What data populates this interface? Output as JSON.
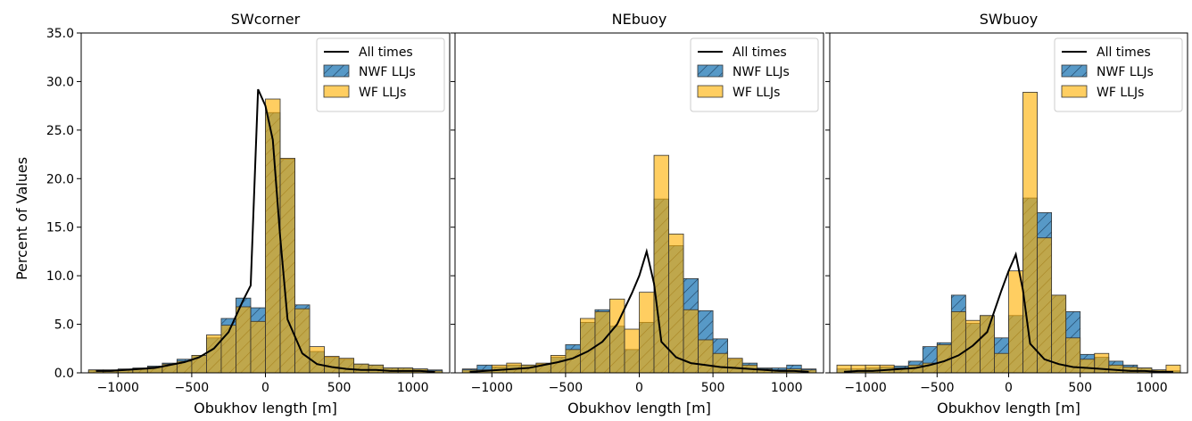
{
  "colors": {
    "nwf": "#1f77b4",
    "wf": "#ffb000",
    "line": "#000000"
  },
  "y_axis_label": "Percent of Values",
  "chart_data": [
    {
      "type": "bar",
      "title": "SWcorner",
      "xlabel": "Obukhov length [m]",
      "ylabel": "Percent of Values",
      "xlim": [
        -1250,
        1250
      ],
      "ylim": [
        0,
        35
      ],
      "xticks": [
        -1000,
        -500,
        0,
        500,
        1000
      ],
      "xtick_labels": [
        "−1000",
        "−500",
        "0",
        "500",
        "1000"
      ],
      "yticks": [
        0,
        5,
        10,
        15,
        20,
        25,
        30,
        35
      ],
      "ytick_labels": [
        "0.0",
        "5.0",
        "10.0",
        "15.0",
        "20.0",
        "25.0",
        "30.0",
        "35.0"
      ],
      "bin_edges": [
        -1200,
        -1100,
        -1000,
        -900,
        -800,
        -700,
        -600,
        -500,
        -400,
        -300,
        -200,
        -100,
        0,
        100,
        200,
        300,
        400,
        500,
        600,
        700,
        800,
        900,
        1000,
        1100,
        1200
      ],
      "legend": {
        "position": "top-right",
        "labels": [
          "All times",
          "NWF LLJs",
          "WF LLJs"
        ]
      },
      "series": [
        {
          "name": "NWF LLJs",
          "kind": "hist",
          "values": [
            0.3,
            0.3,
            0.4,
            0.5,
            0.7,
            1.0,
            1.4,
            1.8,
            3.6,
            5.6,
            7.7,
            6.7,
            26.8,
            22.0,
            7.0,
            2.2,
            1.6,
            1.4,
            0.9,
            0.8,
            0.5,
            0.5,
            0.4,
            0.3
          ]
        },
        {
          "name": "WF LLJs",
          "kind": "hist",
          "values": [
            0.3,
            0.3,
            0.3,
            0.4,
            0.6,
            0.9,
            1.2,
            1.8,
            3.9,
            4.9,
            6.8,
            5.3,
            28.2,
            22.1,
            6.6,
            2.7,
            1.7,
            1.5,
            0.9,
            0.8,
            0.5,
            0.5,
            0.4,
            0.2
          ]
        },
        {
          "name": "All times",
          "kind": "line",
          "x": [
            -1150,
            -1050,
            -950,
            -850,
            -750,
            -650,
            -550,
            -450,
            -350,
            -250,
            -150,
            -100,
            -50,
            0,
            50,
            100,
            150,
            250,
            350,
            450,
            550,
            650,
            750,
            850,
            950,
            1050,
            1150
          ],
          "values": [
            0.2,
            0.2,
            0.3,
            0.4,
            0.5,
            0.8,
            1.1,
            1.6,
            2.5,
            4.2,
            7.5,
            9.0,
            29.2,
            27.5,
            24.0,
            14.0,
            5.5,
            2.0,
            0.9,
            0.6,
            0.4,
            0.3,
            0.3,
            0.2,
            0.2,
            0.2,
            0.1
          ]
        }
      ]
    },
    {
      "type": "bar",
      "title": "NEbuoy",
      "xlabel": "Obukhov length [m]",
      "ylabel": "",
      "xlim": [
        -1250,
        1250
      ],
      "ylim": [
        0,
        35
      ],
      "xticks": [
        -1000,
        -500,
        0,
        500,
        1000
      ],
      "xtick_labels": [
        "−1000",
        "−500",
        "0",
        "500",
        "1000"
      ],
      "yticks": [
        0,
        5,
        10,
        15,
        20,
        25,
        30,
        35
      ],
      "bin_edges": [
        -1200,
        -1100,
        -1000,
        -900,
        -800,
        -700,
        -600,
        -500,
        -400,
        -300,
        -200,
        -100,
        0,
        100,
        200,
        300,
        400,
        500,
        600,
        700,
        800,
        900,
        1000,
        1100,
        1200
      ],
      "legend": {
        "position": "top-right",
        "labels": [
          "All times",
          "NWF LLJs",
          "WF LLJs"
        ]
      },
      "series": [
        {
          "name": "NWF LLJs",
          "kind": "hist",
          "values": [
            0.4,
            0.8,
            0.6,
            0.8,
            0.8,
            0.9,
            1.6,
            2.9,
            5.2,
            6.5,
            4.8,
            2.4,
            5.2,
            17.9,
            13.1,
            9.7,
            6.4,
            3.5,
            1.4,
            1.0,
            0.5,
            0.5,
            0.8,
            0.4
          ]
        },
        {
          "name": "WF LLJs",
          "kind": "hist",
          "values": [
            0.3,
            0.3,
            0.8,
            1.0,
            0.8,
            1.0,
            1.8,
            2.4,
            5.6,
            6.3,
            7.6,
            4.5,
            8.3,
            22.4,
            14.3,
            6.5,
            3.4,
            2.0,
            1.5,
            0.8,
            0.4,
            0.3,
            0.4,
            0.3
          ]
        },
        {
          "name": "All times",
          "kind": "line",
          "x": [
            -1150,
            -1050,
            -950,
            -850,
            -750,
            -650,
            -550,
            -450,
            -350,
            -250,
            -150,
            -50,
            0,
            50,
            100,
            150,
            250,
            350,
            450,
            550,
            650,
            750,
            850,
            950,
            1050,
            1150
          ],
          "values": [
            0.1,
            0.2,
            0.3,
            0.4,
            0.5,
            0.8,
            1.1,
            1.5,
            2.2,
            3.2,
            5.0,
            8.2,
            10.0,
            12.5,
            9.2,
            3.2,
            1.6,
            1.0,
            0.8,
            0.6,
            0.5,
            0.4,
            0.3,
            0.2,
            0.2,
            0.1
          ]
        }
      ]
    },
    {
      "type": "bar",
      "title": "SWbuoy",
      "xlabel": "Obukhov length [m]",
      "ylabel": "",
      "xlim": [
        -1250,
        1250
      ],
      "ylim": [
        0,
        35
      ],
      "xticks": [
        -1000,
        -500,
        0,
        500,
        1000
      ],
      "xtick_labels": [
        "−1000",
        "−500",
        "0",
        "500",
        "1000"
      ],
      "yticks": [
        0,
        5,
        10,
        15,
        20,
        25,
        30,
        35
      ],
      "bin_edges": [
        -1200,
        -1100,
        -1000,
        -900,
        -800,
        -700,
        -600,
        -500,
        -400,
        -300,
        -200,
        -100,
        0,
        100,
        200,
        300,
        400,
        500,
        600,
        700,
        800,
        900,
        1000,
        1100,
        1200
      ],
      "legend": {
        "position": "top-right",
        "labels": [
          "All times",
          "NWF LLJs",
          "WF LLJs"
        ]
      },
      "series": [
        {
          "name": "NWF LLJs",
          "kind": "hist",
          "values": [
            0.4,
            0.4,
            0.5,
            0.6,
            0.7,
            1.2,
            2.7,
            3.1,
            8.0,
            5.1,
            5.9,
            3.6,
            5.9,
            18.0,
            16.5,
            8.0,
            6.3,
            1.9,
            1.6,
            1.2,
            0.8,
            0.5,
            0.3,
            0.2
          ]
        },
        {
          "name": "WF LLJs",
          "kind": "hist",
          "values": [
            0.8,
            0.8,
            0.8,
            0.8,
            0.5,
            0.8,
            1.0,
            2.9,
            6.3,
            5.4,
            5.9,
            2.0,
            10.5,
            28.9,
            13.9,
            8.0,
            3.6,
            1.4,
            2.0,
            0.8,
            0.6,
            0.5,
            0.3,
            0.8
          ]
        },
        {
          "name": "All times",
          "kind": "line",
          "x": [
            -1150,
            -1050,
            -950,
            -850,
            -750,
            -650,
            -550,
            -450,
            -350,
            -250,
            -150,
            -50,
            0,
            50,
            100,
            150,
            250,
            350,
            450,
            550,
            650,
            750,
            850,
            950,
            1050,
            1150
          ],
          "values": [
            0.1,
            0.2,
            0.2,
            0.3,
            0.4,
            0.5,
            0.8,
            1.2,
            1.8,
            2.8,
            4.2,
            8.5,
            10.5,
            12.2,
            8.5,
            3.0,
            1.4,
            0.9,
            0.6,
            0.5,
            0.4,
            0.3,
            0.2,
            0.2,
            0.1,
            0.1
          ]
        }
      ]
    }
  ]
}
